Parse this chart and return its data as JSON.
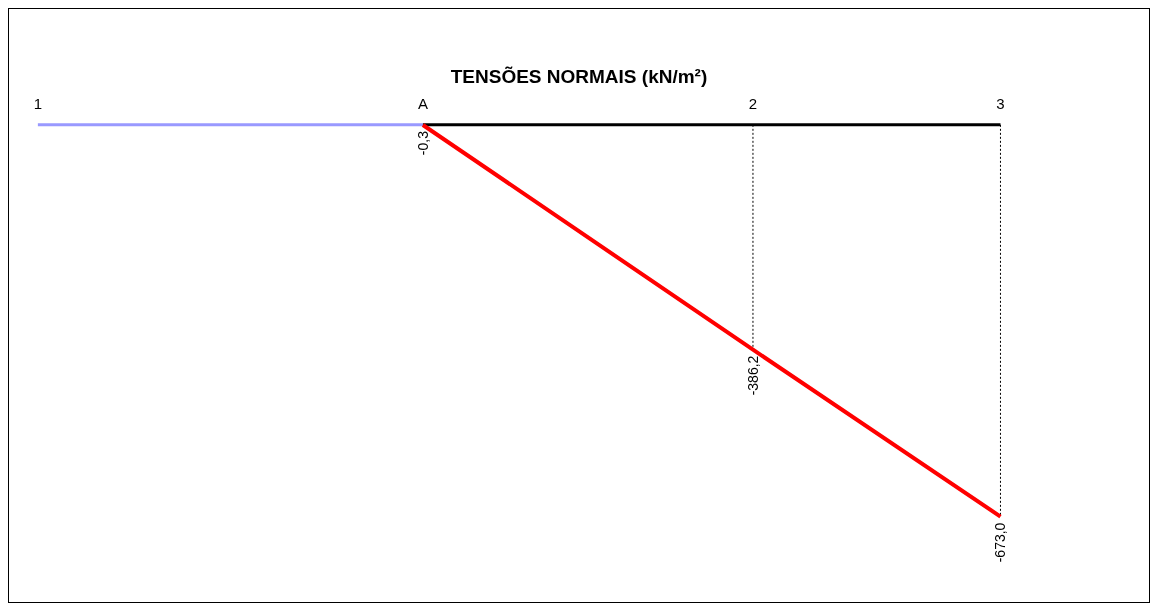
{
  "chart_data": {
    "type": "line",
    "title": "TENSÕES NORMAIS (kN/m²)",
    "categories": [
      "1",
      null,
      null,
      null,
      null,
      null,
      null,
      null,
      null,
      null,
      null,
      null,
      null,
      null,
      "A",
      null,
      null,
      null,
      null,
      null,
      null,
      null,
      null,
      null,
      null,
      null,
      "2",
      null,
      null,
      null,
      null,
      null,
      null,
      null,
      null,
      "3"
    ],
    "series": [
      {
        "color": "#9999ff",
        "values": [
          0,
          null,
          null,
          null,
          null,
          null,
          null,
          null,
          null,
          null,
          null,
          null,
          null,
          null,
          0,
          null,
          null,
          null,
          null,
          null,
          null,
          null,
          null,
          null,
          null,
          null,
          null,
          null,
          null,
          null,
          null,
          null,
          null,
          null,
          null,
          null
        ]
      },
      {
        "color": "#000000",
        "values": [
          null,
          null,
          null,
          null,
          null,
          null,
          null,
          null,
          null,
          null,
          null,
          null,
          null,
          null,
          0,
          null,
          null,
          null,
          null,
          null,
          null,
          null,
          null,
          null,
          null,
          null,
          null,
          null,
          null,
          null,
          null,
          null,
          null,
          null,
          null,
          0
        ]
      },
      {
        "color": "#ff0000",
        "values": [
          null,
          null,
          null,
          null,
          null,
          null,
          null,
          null,
          null,
          null,
          null,
          null,
          null,
          null,
          -0.3,
          null,
          null,
          null,
          null,
          null,
          null,
          null,
          null,
          null,
          null,
          null,
          -386.2,
          null,
          null,
          null,
          null,
          null,
          null,
          null,
          null,
          -673.0
        ],
        "value_labels": [
          null,
          null,
          null,
          null,
          null,
          null,
          null,
          null,
          null,
          null,
          null,
          null,
          null,
          null,
          "-0,3",
          null,
          null,
          null,
          null,
          null,
          null,
          null,
          null,
          null,
          null,
          null,
          "-386,2",
          null,
          null,
          null,
          null,
          null,
          null,
          null,
          null,
          "-673,0"
        ]
      }
    ],
    "tick_labels": "x",
    "marker": "none",
    "legend": false,
    "grid": false,
    "ref_lines": [
      {
        "axis": "x",
        "value": "2",
        "color": "#000000",
        "line_style": "dotted"
      },
      {
        "axis": "x",
        "value": "3",
        "color": "#000000",
        "line_style": "dotted"
      }
    ]
  }
}
